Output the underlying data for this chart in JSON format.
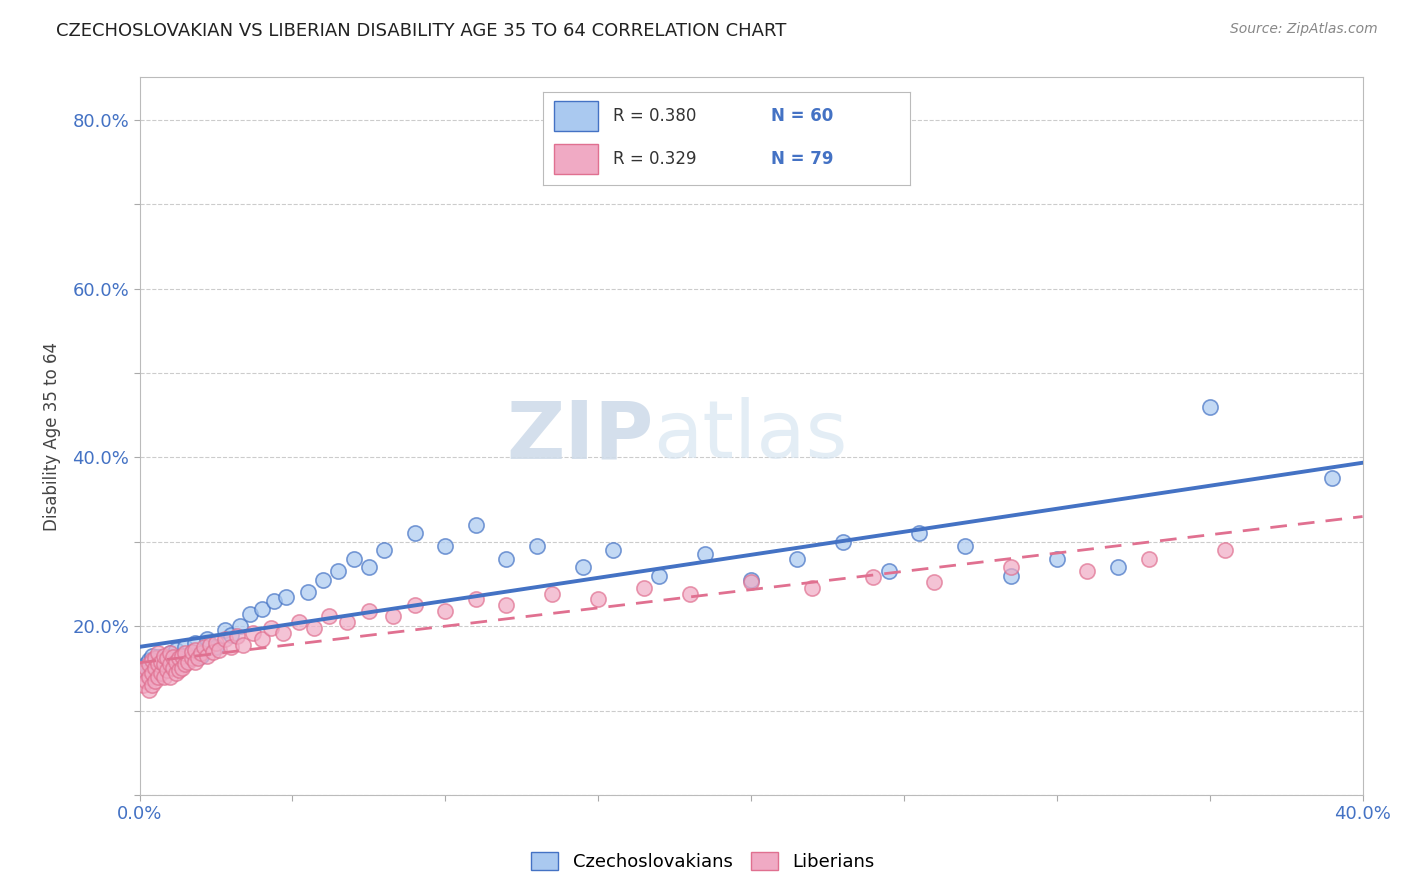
{
  "title": "CZECHOSLOVAKIAN VS LIBERIAN DISABILITY AGE 35 TO 64 CORRELATION CHART",
  "source": "Source: ZipAtlas.com",
  "ylabel": "Disability Age 35 to 64",
  "xlim": [
    0.0,
    0.4
  ],
  "ylim": [
    0.0,
    0.85
  ],
  "xticks": [
    0.0,
    0.05,
    0.1,
    0.15,
    0.2,
    0.25,
    0.3,
    0.35,
    0.4
  ],
  "yticks": [
    0.0,
    0.1,
    0.2,
    0.3,
    0.4,
    0.5,
    0.6,
    0.7,
    0.8
  ],
  "legend_r1": "R = 0.380",
  "legend_n1": "N = 60",
  "legend_r2": "R = 0.329",
  "legend_n2": "N = 79",
  "color_czech": "#aac9f0",
  "color_liberian": "#f0aac4",
  "color_line_czech": "#4472c4",
  "color_line_liberian": "#e07090",
  "watermark_zip": "ZIP",
  "watermark_atlas": "atlas",
  "czech_x": [
    0.001,
    0.002,
    0.002,
    0.003,
    0.003,
    0.004,
    0.004,
    0.005,
    0.005,
    0.006,
    0.006,
    0.007,
    0.008,
    0.009,
    0.01,
    0.01,
    0.011,
    0.012,
    0.013,
    0.014,
    0.015,
    0.016,
    0.017,
    0.018,
    0.02,
    0.022,
    0.025,
    0.028,
    0.03,
    0.033,
    0.036,
    0.04,
    0.044,
    0.048,
    0.055,
    0.06,
    0.065,
    0.07,
    0.075,
    0.08,
    0.09,
    0.1,
    0.11,
    0.12,
    0.13,
    0.145,
    0.155,
    0.17,
    0.185,
    0.2,
    0.215,
    0.23,
    0.245,
    0.255,
    0.27,
    0.285,
    0.3,
    0.32,
    0.35,
    0.39
  ],
  "czech_y": [
    0.15,
    0.145,
    0.155,
    0.14,
    0.16,
    0.15,
    0.165,
    0.145,
    0.158,
    0.152,
    0.163,
    0.148,
    0.155,
    0.162,
    0.15,
    0.168,
    0.158,
    0.172,
    0.155,
    0.165,
    0.175,
    0.16,
    0.17,
    0.18,
    0.165,
    0.185,
    0.175,
    0.195,
    0.19,
    0.2,
    0.215,
    0.22,
    0.23,
    0.235,
    0.24,
    0.255,
    0.265,
    0.28,
    0.27,
    0.29,
    0.31,
    0.295,
    0.32,
    0.28,
    0.295,
    0.27,
    0.29,
    0.26,
    0.285,
    0.255,
    0.28,
    0.3,
    0.265,
    0.31,
    0.295,
    0.26,
    0.28,
    0.27,
    0.46,
    0.375
  ],
  "liberian_x": [
    0.001,
    0.001,
    0.002,
    0.002,
    0.003,
    0.003,
    0.003,
    0.004,
    0.004,
    0.004,
    0.005,
    0.005,
    0.005,
    0.006,
    0.006,
    0.006,
    0.007,
    0.007,
    0.008,
    0.008,
    0.008,
    0.009,
    0.009,
    0.01,
    0.01,
    0.01,
    0.011,
    0.011,
    0.012,
    0.012,
    0.013,
    0.013,
    0.014,
    0.014,
    0.015,
    0.015,
    0.016,
    0.017,
    0.017,
    0.018,
    0.018,
    0.019,
    0.02,
    0.021,
    0.022,
    0.023,
    0.024,
    0.025,
    0.026,
    0.028,
    0.03,
    0.032,
    0.034,
    0.037,
    0.04,
    0.043,
    0.047,
    0.052,
    0.057,
    0.062,
    0.068,
    0.075,
    0.083,
    0.09,
    0.1,
    0.11,
    0.12,
    0.135,
    0.15,
    0.165,
    0.18,
    0.2,
    0.22,
    0.24,
    0.26,
    0.285,
    0.31,
    0.33,
    0.355
  ],
  "liberian_y": [
    0.13,
    0.145,
    0.135,
    0.15,
    0.125,
    0.14,
    0.155,
    0.13,
    0.145,
    0.16,
    0.135,
    0.15,
    0.162,
    0.14,
    0.155,
    0.168,
    0.145,
    0.158,
    0.14,
    0.155,
    0.165,
    0.148,
    0.162,
    0.14,
    0.155,
    0.168,
    0.15,
    0.163,
    0.145,
    0.158,
    0.148,
    0.162,
    0.15,
    0.165,
    0.155,
    0.168,
    0.158,
    0.162,
    0.17,
    0.158,
    0.172,
    0.162,
    0.168,
    0.175,
    0.165,
    0.178,
    0.17,
    0.18,
    0.172,
    0.185,
    0.175,
    0.188,
    0.178,
    0.192,
    0.185,
    0.198,
    0.192,
    0.205,
    0.198,
    0.212,
    0.205,
    0.218,
    0.212,
    0.225,
    0.218,
    0.232,
    0.225,
    0.238,
    0.232,
    0.245,
    0.238,
    0.252,
    0.245,
    0.258,
    0.252,
    0.27,
    0.265,
    0.28,
    0.29
  ]
}
